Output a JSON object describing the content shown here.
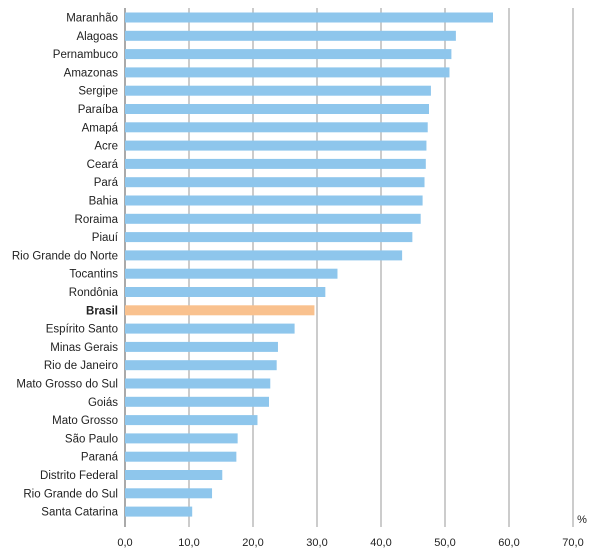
{
  "chart_data": {
    "type": "bar",
    "orientation": "horizontal",
    "categories": [
      "Maranhão",
      "Alagoas",
      "Pernambuco",
      "Amazonas",
      "Sergipe",
      "Paraíba",
      "Amapá",
      "Acre",
      "Ceará",
      "Pará",
      "Bahia",
      "Roraima",
      "Piauí",
      "Rio Grande do Norte",
      "Tocantins",
      "Rondônia",
      "Brasil",
      "Espírito Santo",
      "Minas Gerais",
      "Rio de Janeiro",
      "Mato Grosso do Sul",
      "Goiás",
      "Mato Grosso",
      "São Paulo",
      "Paraná",
      "Distrito Federal",
      "Rio Grande do Sul",
      "Santa Catarina"
    ],
    "values": [
      57.5,
      51.7,
      51.0,
      50.7,
      47.8,
      47.5,
      47.3,
      47.1,
      47.0,
      46.8,
      46.5,
      46.2,
      44.9,
      43.3,
      33.2,
      31.3,
      29.6,
      26.5,
      23.9,
      23.7,
      22.7,
      22.5,
      20.7,
      17.6,
      17.4,
      15.2,
      13.6,
      10.5
    ],
    "highlight_category": "Brasil",
    "xlim": [
      0,
      70
    ],
    "xticks": [
      "0,0",
      "10,0",
      "20,0",
      "30,0",
      "40,0",
      "50,0",
      "60,0",
      "70,0"
    ],
    "xunit": "%",
    "grid": "vertical",
    "colors": {
      "bar": "#8ec6ec",
      "highlight": "#f9c18e",
      "grid": "#9a9a9a",
      "axis": "#555555"
    }
  }
}
